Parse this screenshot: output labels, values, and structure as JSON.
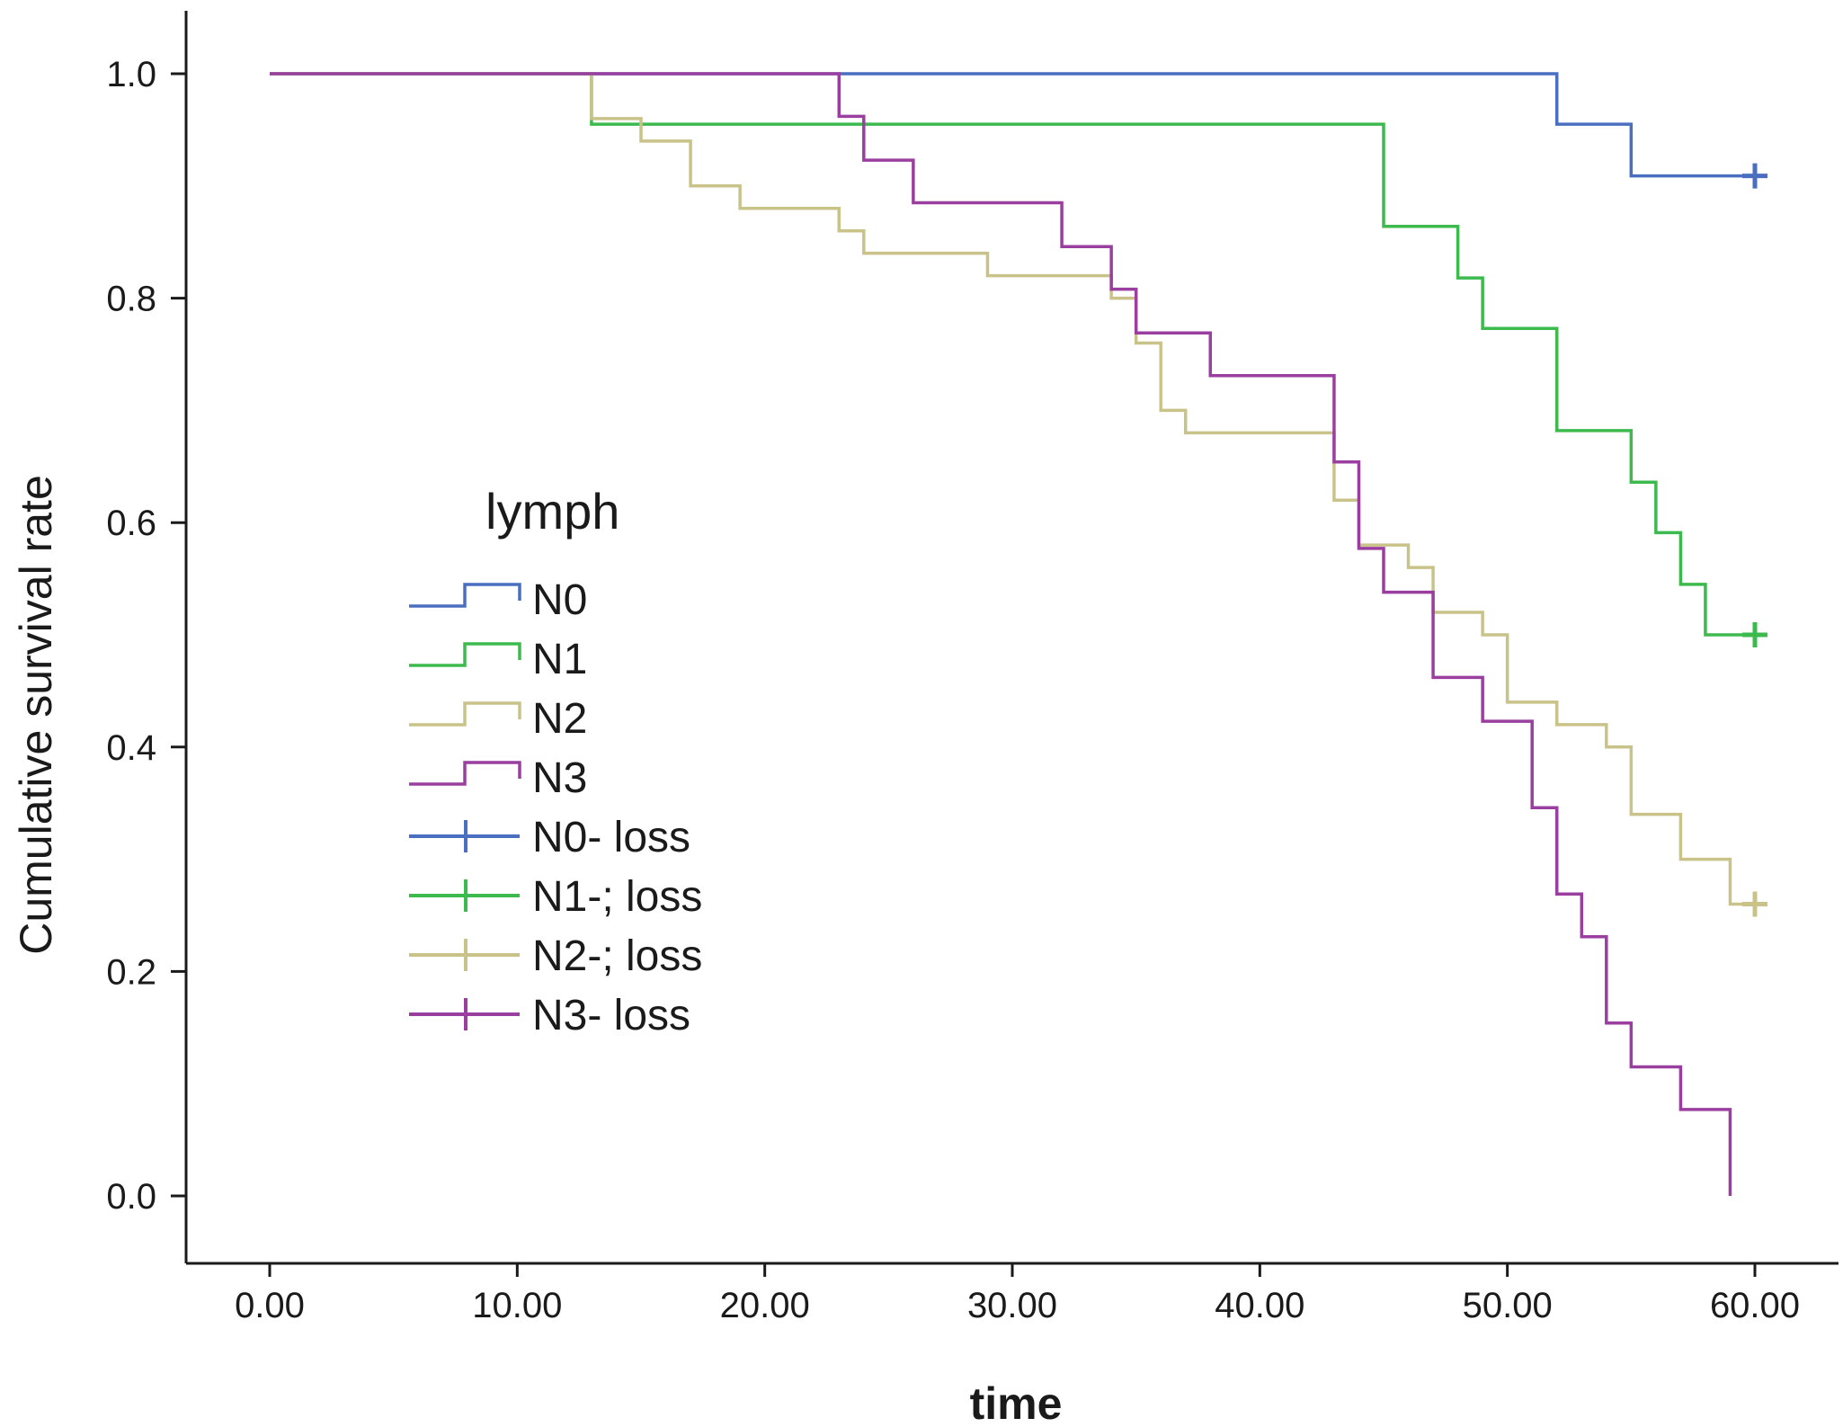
{
  "chart_data": {
    "type": "line",
    "subtype": "kaplan-meier step",
    "title": "",
    "xlabel": "time",
    "ylabel": "Cumulative survival rate",
    "xlim": [
      0,
      60
    ],
    "ylim": [
      0,
      1
    ],
    "x_ticks": [
      "0.00",
      "10.00",
      "20.00",
      "30.00",
      "40.00",
      "50.00",
      "60.00"
    ],
    "y_ticks": [
      "0.0",
      "0.2",
      "0.4",
      "0.6",
      "0.8",
      "1.0"
    ],
    "grid": false,
    "legend": {
      "title": "lymph",
      "placement": "center-left",
      "entries": [
        {
          "label": "N0",
          "kind": "line",
          "color": "#4a6fc0"
        },
        {
          "label": "N1",
          "kind": "line",
          "color": "#3dba4e"
        },
        {
          "label": "N2",
          "kind": "line",
          "color": "#c9c38a"
        },
        {
          "label": "N3",
          "kind": "line",
          "color": "#9a3fa0"
        },
        {
          "label": "N0- loss",
          "kind": "censor",
          "color": "#4a6fc0"
        },
        {
          "label": "N1-; loss",
          "kind": "censor",
          "color": "#3dba4e"
        },
        {
          "label": "N2-; loss",
          "kind": "censor",
          "color": "#c9c38a"
        },
        {
          "label": "N3- loss",
          "kind": "censor",
          "color": "#9a3fa0"
        }
      ]
    },
    "series": [
      {
        "name": "N0",
        "color": "#4a6fc0",
        "steps": [
          [
            0,
            1.0
          ],
          [
            52,
            0.955
          ],
          [
            55,
            0.909
          ],
          [
            60,
            0.909
          ]
        ],
        "censored": [
          [
            60,
            0.909
          ]
        ]
      },
      {
        "name": "N1",
        "color": "#3dba4e",
        "steps": [
          [
            0,
            1.0
          ],
          [
            13,
            0.955
          ],
          [
            45,
            0.864
          ],
          [
            48,
            0.818
          ],
          [
            49,
            0.773
          ],
          [
            52,
            0.682
          ],
          [
            55,
            0.636
          ],
          [
            56,
            0.591
          ],
          [
            57,
            0.545
          ],
          [
            58,
            0.5
          ],
          [
            60,
            0.5
          ]
        ],
        "censored": [
          [
            60,
            0.5
          ]
        ]
      },
      {
        "name": "N2",
        "color": "#c9c38a",
        "steps": [
          [
            0,
            1.0
          ],
          [
            13,
            0.96
          ],
          [
            15,
            0.94
          ],
          [
            17,
            0.9
          ],
          [
            19,
            0.88
          ],
          [
            23,
            0.86
          ],
          [
            24,
            0.84
          ],
          [
            29,
            0.82
          ],
          [
            34,
            0.8
          ],
          [
            35,
            0.76
          ],
          [
            36,
            0.7
          ],
          [
            37,
            0.68
          ],
          [
            43,
            0.62
          ],
          [
            44,
            0.58
          ],
          [
            46,
            0.56
          ],
          [
            47,
            0.52
          ],
          [
            49,
            0.5
          ],
          [
            50,
            0.44
          ],
          [
            52,
            0.42
          ],
          [
            54,
            0.4
          ],
          [
            55,
            0.34
          ],
          [
            57,
            0.3
          ],
          [
            59,
            0.26
          ],
          [
            60,
            0.26
          ]
        ],
        "censored": [
          [
            60,
            0.26
          ]
        ]
      },
      {
        "name": "N3",
        "color": "#9a3fa0",
        "steps": [
          [
            0,
            1.0
          ],
          [
            23,
            0.962
          ],
          [
            24,
            0.923
          ],
          [
            26,
            0.885
          ],
          [
            32,
            0.846
          ],
          [
            34,
            0.808
          ],
          [
            35,
            0.769
          ],
          [
            38,
            0.731
          ],
          [
            43,
            0.654
          ],
          [
            44,
            0.577
          ],
          [
            45,
            0.538
          ],
          [
            47,
            0.462
          ],
          [
            49,
            0.423
          ],
          [
            51,
            0.346
          ],
          [
            52,
            0.269
          ],
          [
            53,
            0.231
          ],
          [
            54,
            0.154
          ],
          [
            55,
            0.115
          ],
          [
            57,
            0.077
          ],
          [
            59,
            0.0
          ]
        ],
        "censored": []
      }
    ]
  }
}
